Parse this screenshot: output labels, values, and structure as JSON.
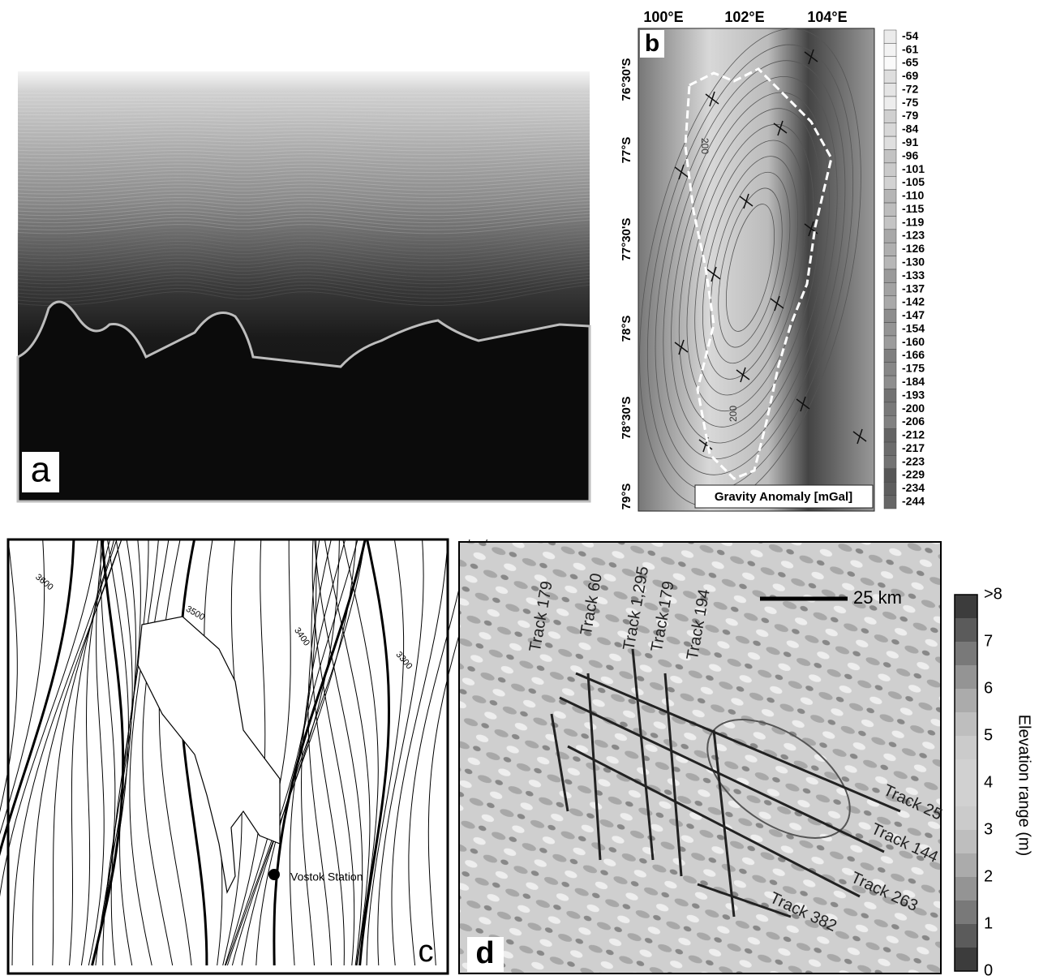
{
  "panels": {
    "a": {
      "label": "a"
    },
    "b": {
      "label": "b",
      "longitudes": [
        "100°E",
        "102°E",
        "104°E"
      ],
      "latitudes": [
        "76°30'S",
        "77°S",
        "77°30'S",
        "78°S",
        "78°30'S",
        "79°S"
      ],
      "contour_labels": [
        "200",
        "200"
      ],
      "colorbar": {
        "title": "Gravity Anomaly [mGal]",
        "ticks": [
          -54,
          -61,
          -65,
          -69,
          -72,
          -75,
          -79,
          -84,
          -91,
          -96,
          -101,
          -105,
          -110,
          -115,
          -119,
          -123,
          -126,
          -130,
          -133,
          -137,
          -142,
          -147,
          -154,
          -160,
          -166,
          -175,
          -184,
          -193,
          -200,
          -206,
          -212,
          -217,
          -223,
          -229,
          -234,
          -244
        ]
      }
    },
    "c": {
      "label": "c",
      "contour_labels": [
        "3600",
        "3500",
        "3400",
        "3300"
      ],
      "station": "Vostok Station"
    },
    "d": {
      "label": "d",
      "scale": "25 km",
      "tracks": [
        "Track 179",
        "Track 60",
        "Track 1,295",
        "Track 179",
        "Track 194",
        "Track 25",
        "Track 144",
        "Track 263",
        "Track 382"
      ],
      "colorbar": {
        "title": "Elevation range (m)",
        "ticks": [
          ">8",
          7,
          6,
          5,
          4,
          3,
          2,
          1,
          0
        ]
      }
    }
  }
}
